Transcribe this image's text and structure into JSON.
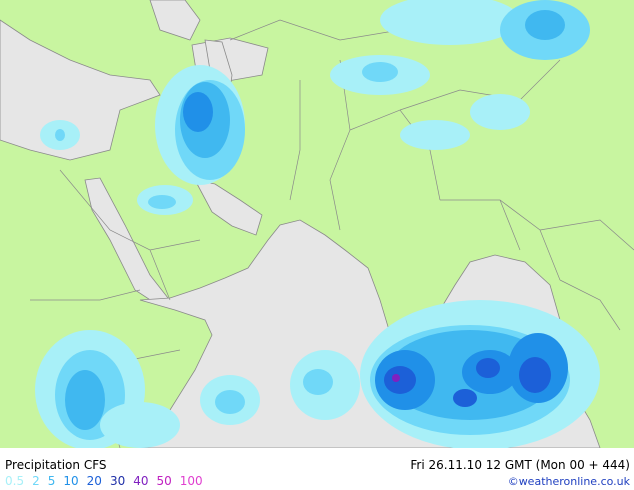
{
  "map": {
    "title": "Precipitation CFS",
    "timestamp": "Fri 26.11.10 12 GMT (Mon 00 + 444)",
    "credit": "©weatheronline.co.uk",
    "legend": [
      {
        "value": 0.5,
        "color": "#a8f0f8"
      },
      {
        "value": 2,
        "color": "#70d8f8"
      },
      {
        "value": 5,
        "color": "#40b8f0"
      },
      {
        "value": 10,
        "color": "#2090e8"
      },
      {
        "value": 20,
        "color": "#1c60d8"
      },
      {
        "value": 30,
        "color": "#2030a8"
      },
      {
        "value": 40,
        "color": "#8020c0"
      },
      {
        "value": 50,
        "color": "#c020c0"
      },
      {
        "value": 100,
        "color": "#e040d0"
      }
    ]
  }
}
